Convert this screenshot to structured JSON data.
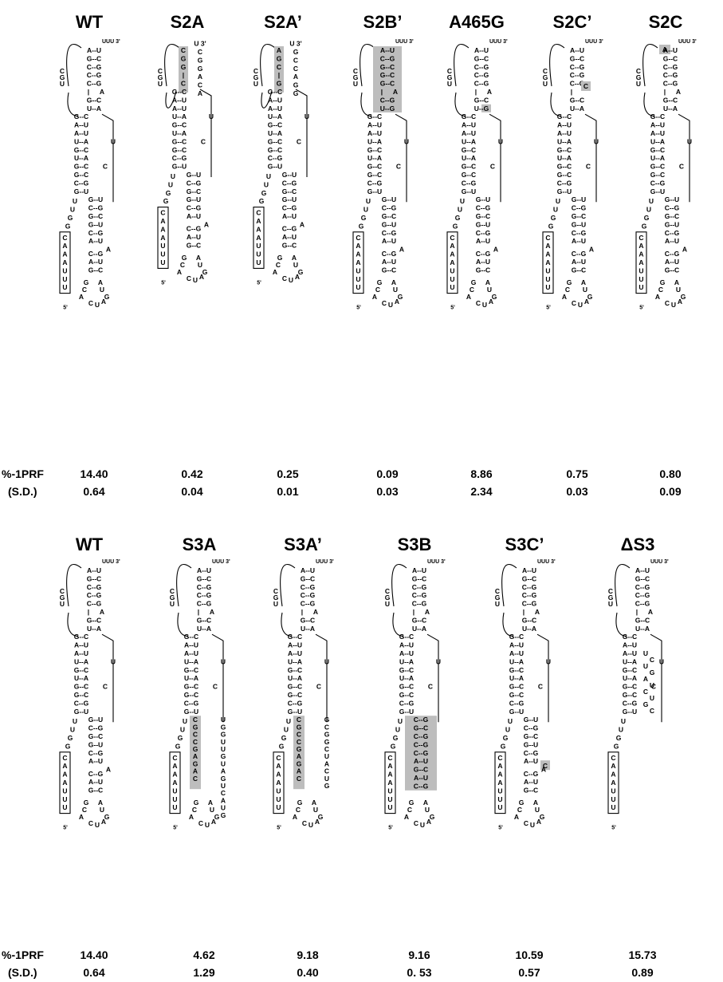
{
  "row_labels": {
    "prf": "%-1PRF",
    "sd": "(S.D.)"
  },
  "wt_ends": {
    "three_prime": "UUU 3'",
    "five_prime": "5'"
  },
  "wt": {
    "upper_pairs": [
      "A--U",
      "G--C",
      "C--G",
      "C--G",
      "C--G"
    ],
    "bulge": [
      "|",
      "A"
    ],
    "mid_pairs": [
      "G--C",
      "U--A"
    ],
    "loop1": [
      "C",
      "G",
      "U"
    ],
    "s1_pairs": [
      "G--C",
      "A--U",
      "A--U",
      "U--A",
      "G--C",
      "U--A",
      "G--C",
      "G--C",
      "C--G",
      "G--U"
    ],
    "loop2": [
      "U",
      "C"
    ],
    "s3_pairs": [
      "G--U",
      "C--G",
      "G--C",
      "G--U",
      "C--G",
      "A--U"
    ],
    "lower_pairs": [
      "C--G",
      "A--U",
      "G--C"
    ],
    "spacer": [
      "U",
      "U",
      "G",
      "G"
    ],
    "slippery": [
      "C",
      "A",
      "A",
      "A",
      "U",
      "U",
      "U"
    ],
    "tetra_left": [
      "G",
      "C",
      "A"
    ],
    "tetra_right": [
      "A",
      "U",
      "G"
    ],
    "tetra_bottom": [
      "C",
      "U",
      "A"
    ],
    "top_a": "A"
  },
  "panels_top": [
    {
      "name": "WT",
      "prf": "14.40",
      "sd": "0.64"
    },
    {
      "name": "S2A",
      "prf": "0.42",
      "sd": "0.04",
      "mut": {
        "stem_left": [
          "C",
          "G",
          "G",
          "|",
          "C"
        ],
        "stem_right": [
          "U 3'",
          "C",
          "G",
          "G",
          "A",
          "C",
          "A"
        ]
      }
    },
    {
      "name": "S2A’",
      "prf": "0.25",
      "sd": "0.01",
      "mut": {
        "stem_left": [
          "A",
          "G",
          "C",
          "|",
          "G"
        ],
        "stem_right": [
          "U 3'",
          "G",
          "C",
          "C",
          "A",
          "G",
          "G"
        ]
      }
    },
    {
      "name": "S2B’",
      "prf": "0.09",
      "sd": "0.03",
      "mut": {
        "upper_pairs": [
          "A--U",
          "C--G",
          "G--C",
          "G--C",
          "G--C"
        ],
        "mid_pairs": [
          "C--G",
          "U--G"
        ]
      }
    },
    {
      "name": "A465G",
      "prf": "8.86",
      "sd": "2.34",
      "mut": {
        "mid_pairs": [
          "G--C",
          "U--G"
        ]
      }
    },
    {
      "name": "S2C’",
      "prf": "0.75",
      "sd": "0.03",
      "mut": {
        "bulge": [
          "|",
          "C"
        ]
      }
    },
    {
      "name": "S2C",
      "prf": "0.80",
      "sd": "0.09",
      "mut": {
        "top": "A"
      }
    }
  ],
  "panels_bottom": [
    {
      "name": "WT",
      "prf": "14.40",
      "sd": "0.64"
    },
    {
      "name": "S3A",
      "prf": "4.62",
      "sd": "1.29",
      "mut": {
        "s3_left": [
          "C",
          "G",
          "C",
          "C",
          "G",
          "A",
          "G",
          "A",
          "C"
        ],
        "s3_right": [
          "U",
          "G",
          "G",
          "U",
          "U",
          "G",
          "U",
          "A",
          "G",
          "U",
          "C",
          "A",
          "U",
          "G"
        ]
      }
    },
    {
      "name": "S3A’",
      "prf": "9.18",
      "sd": "0.40",
      "mut": {
        "s3_left": [
          "C",
          "G",
          "C",
          "C",
          "G",
          "A",
          "G",
          "A",
          "C"
        ],
        "s3_right": [
          "G",
          "C",
          "G",
          "G",
          "C",
          "U",
          "A",
          "C",
          "U",
          "G"
        ]
      }
    },
    {
      "name": "S3B",
      "prf": "9.16",
      "sd": "0. 53",
      "mut": {
        "s3_pairs": [
          "C--G",
          "G--C",
          "C--G",
          "C--G",
          "C--G",
          "A--U",
          "G--C",
          "A--U",
          "C--G"
        ]
      }
    },
    {
      "name": "S3C’",
      "prf": "10.59",
      "sd": "0.57",
      "mut": {
        "bulge3": "C"
      }
    },
    {
      "name": "ΔS3",
      "prf": "15.73",
      "sd": "0.89",
      "mut": {
        "right_loop": [
          "U",
          "U",
          "C",
          "U",
          "G",
          "A",
          "U",
          "C",
          "U",
          "G",
          "C"
        ]
      }
    }
  ],
  "colors": {
    "highlight": "#bdbdbd",
    "ink": "#000000"
  }
}
